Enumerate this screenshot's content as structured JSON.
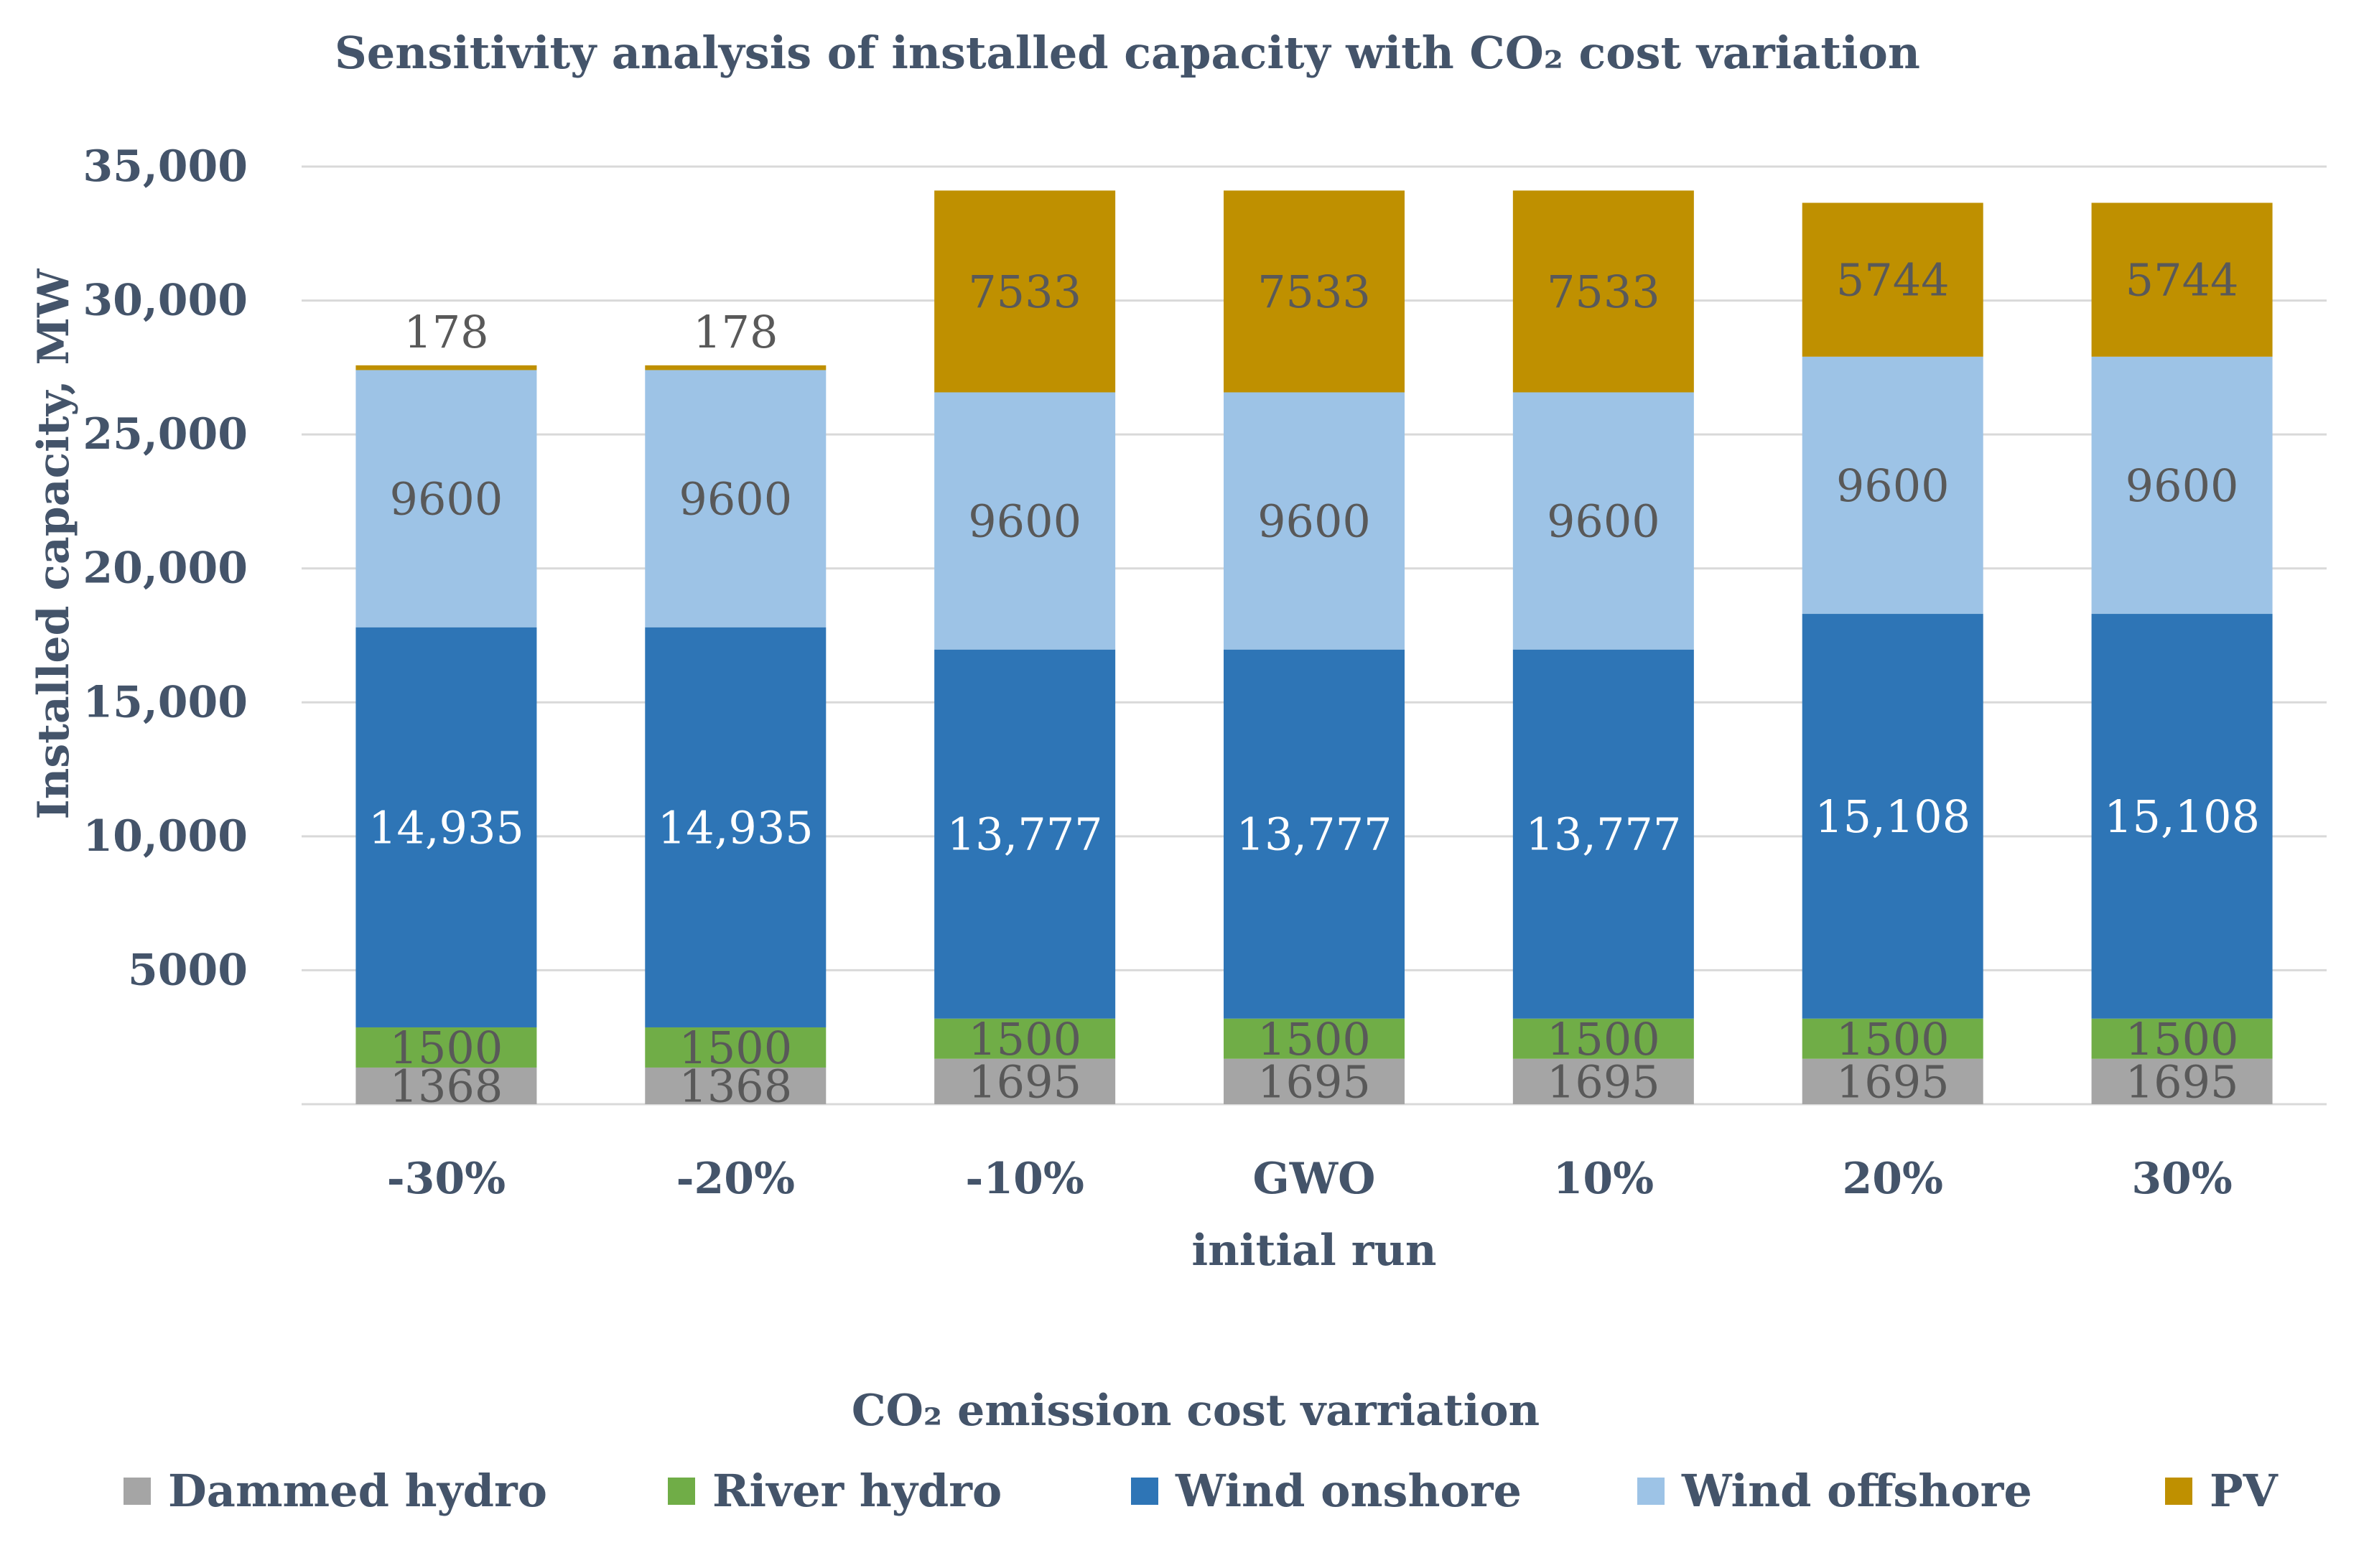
{
  "chart_data": {
    "type": "bar",
    "stacked": true,
    "title": "Sensitivity analysis of installed capacity with CO₂ cost variation",
    "xlabel": "CO₂ emission cost varriation",
    "ylabel": "Installed capacity, MW",
    "ylim": [
      0,
      35000
    ],
    "yticks": [
      {
        "value": 5000,
        "label": "5000"
      },
      {
        "value": 10000,
        "label": "10,000"
      },
      {
        "value": 15000,
        "label": "15,000"
      },
      {
        "value": 20000,
        "label": "20,000"
      },
      {
        "value": 25000,
        "label": "25,000"
      },
      {
        "value": 30000,
        "label": "30,000"
      },
      {
        "value": 35000,
        "label": "35,000"
      }
    ],
    "grid": true,
    "legend_position": "bottom",
    "categories": [
      [
        "-30%"
      ],
      [
        "-20%"
      ],
      [
        "-10%"
      ],
      [
        "GWO",
        "initial run"
      ],
      [
        "10%"
      ],
      [
        "20%"
      ],
      [
        "30%"
      ]
    ],
    "series": [
      {
        "name": "Dammed hydro",
        "color": "#A5A5A5",
        "label_color": "#595959",
        "values": [
          1368,
          1368,
          1695,
          1695,
          1695,
          1695,
          1695
        ],
        "labels": [
          "1368",
          "1368",
          "1695",
          "1695",
          "1695",
          "1695",
          "1695"
        ]
      },
      {
        "name": "River hydro",
        "color": "#70AD47",
        "label_color": "#595959",
        "values": [
          1500,
          1500,
          1500,
          1500,
          1500,
          1500,
          1500
        ],
        "labels": [
          "1500",
          "1500",
          "1500",
          "1500",
          "1500",
          "1500",
          "1500"
        ]
      },
      {
        "name": "Wind onshore",
        "color": "#2E75B6",
        "label_color": "#FFFFFF",
        "values": [
          14935,
          14935,
          13777,
          13777,
          13777,
          15108,
          15108
        ],
        "labels": [
          "14,935",
          "14,935",
          "13,777",
          "13,777",
          "13,777",
          "15,108",
          "15,108"
        ]
      },
      {
        "name": "Wind offshore",
        "color": "#9DC3E6",
        "label_color": "#595959",
        "values": [
          9600,
          9600,
          9600,
          9600,
          9600,
          9600,
          9600
        ],
        "labels": [
          "9600",
          "9600",
          "9600",
          "9600",
          "9600",
          "9600",
          "9600"
        ]
      },
      {
        "name": "PV",
        "color": "#BF9000",
        "label_color": "#595959",
        "values": [
          178,
          178,
          7533,
          7533,
          7533,
          5744,
          5744
        ],
        "labels": [
          "178",
          "178",
          "7533",
          "7533",
          "7533",
          "5744",
          "5744"
        ]
      }
    ]
  }
}
